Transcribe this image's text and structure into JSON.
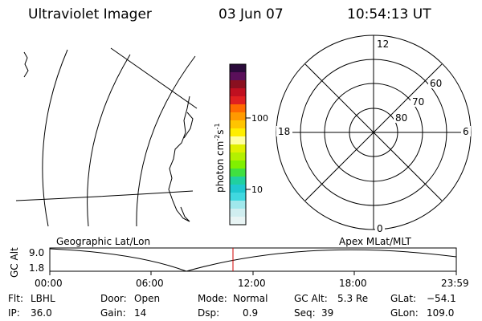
{
  "header": {
    "instrument": "Ultraviolet Imager",
    "date": "03 Jun 07",
    "time": "10:54:13 UT"
  },
  "colorbar": {
    "unit": "photon cm",
    "exp1": "-2",
    "s": "s",
    "exp2": "-1",
    "tick_high": "100",
    "tick_low": "10",
    "colors": [
      "#2a0a3a",
      "#5a0f5a",
      "#8a1020",
      "#c01020",
      "#e02020",
      "#ff6a00",
      "#ff9a00",
      "#ffc400",
      "#ffee00",
      "#ffffa0",
      "#e0f000",
      "#b4f000",
      "#80f000",
      "#40e040",
      "#20d0a0",
      "#20c8d0",
      "#40d8e0",
      "#a0e8ec",
      "#d0eef0",
      "#e8f4f4"
    ]
  },
  "polar": {
    "label_12": "12",
    "label_18": "18",
    "label_6": "6",
    "label_0": "0",
    "lat_60": "60",
    "lat_70": "70",
    "lat_80": "80"
  },
  "timeline": {
    "left_caption": "Geographic Lat/Lon",
    "right_caption": "Apex MLat/MLT",
    "ylabel": "GC Alt",
    "ytick_top": "9.0",
    "ytick_bottom": "1.8",
    "xticks": [
      "00:00",
      "06:00",
      "12:00",
      "18:00",
      "23:59"
    ],
    "current_time_marker": "10:54"
  },
  "status": {
    "flt_label": "Flt:",
    "flt": "LBHL",
    "ip_label": "IP:",
    "ip": "36.0",
    "door_label": "Door:",
    "door": "Open",
    "gain_label": "Gain:",
    "gain": "14",
    "mode_label": "Mode:",
    "mode": "Normal",
    "dsp_label": "Dsp:",
    "dsp": "0.9",
    "gcalt_label": "GC Alt:",
    "gcalt": "5.3 Re",
    "seq_label": "Seq:",
    "seq": "39",
    "glat_label": "GLat:",
    "glat": "−54.1",
    "glon_label": "GLon:",
    "glon": "109.0"
  },
  "colors": {
    "marker": "#d00000",
    "line": "#000000"
  }
}
